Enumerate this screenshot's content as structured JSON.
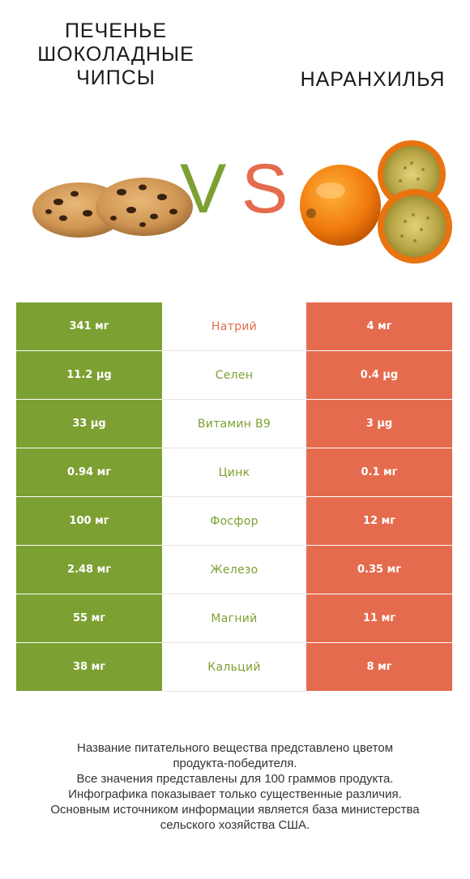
{
  "left_product": {
    "title": "ПЕЧЕНЬЕ\nШОКОЛАДНЫЕ\nЧИПСЫ",
    "color": "#7ca032"
  },
  "right_product": {
    "title": "НАРАНХИЛЬЯ",
    "color": "#e56b4e"
  },
  "vs": {
    "v": "V",
    "s": "S"
  },
  "chart_data": {
    "type": "table",
    "columns": [
      "ПЕЧЕНЬЕ ШОКОЛАДНЫЕ ЧИПСЫ",
      "",
      "НАРАНХИЛЬЯ"
    ],
    "rows": [
      {
        "nutrient": "Натрий",
        "left": "341 мг",
        "right": "4 мг",
        "winner": "right"
      },
      {
        "nutrient": "Селен",
        "left": "11.2 µg",
        "right": "0.4 µg",
        "winner": "left"
      },
      {
        "nutrient": "Витамин B9",
        "left": "33 µg",
        "right": "3 µg",
        "winner": "left"
      },
      {
        "nutrient": "Цинк",
        "left": "0.94 мг",
        "right": "0.1 мг",
        "winner": "left"
      },
      {
        "nutrient": "Фосфор",
        "left": "100 мг",
        "right": "12 мг",
        "winner": "left"
      },
      {
        "nutrient": "Железо",
        "left": "2.48 мг",
        "right": "0.35 мг",
        "winner": "left"
      },
      {
        "nutrient": "Магний",
        "left": "55 мг",
        "right": "11 мг",
        "winner": "left"
      },
      {
        "nutrient": "Кальций",
        "left": "38 мг",
        "right": "8 мг",
        "winner": "left"
      }
    ]
  },
  "footer": [
    "Название питательного вещества представлено цветом",
    "продукта-победителя.",
    "Все значения представлены для 100 граммов продукта.",
    "Инфографика показывает только существенные различия.",
    "Основным источником информации является база министерства",
    "сельского хозяйства США."
  ]
}
